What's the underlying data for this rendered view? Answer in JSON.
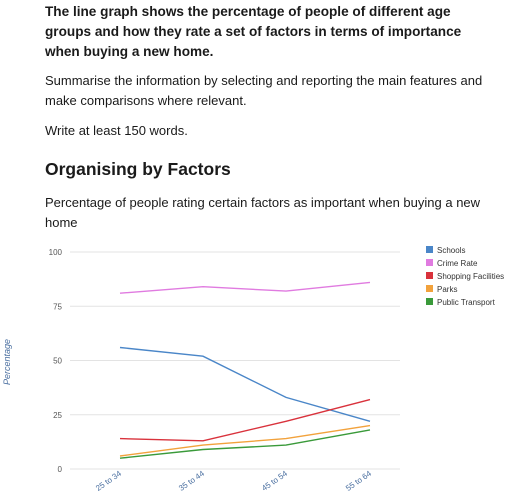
{
  "task": {
    "prompt": "The line graph shows the percentage of people of different age groups and how they rate a set of factors in terms of importance when buying a new home.",
    "instruction": "Summarise the information by selecting and reporting the main features and make comparisons where relevant.",
    "word_count": "Write at least 150 words."
  },
  "section": {
    "heading": "Organising by Factors",
    "caption": "Percentage of people rating certain factors as important when buying a new home"
  },
  "chart_data": {
    "type": "line",
    "title": "",
    "xlabel": "",
    "ylabel": "Percentage",
    "ylim": [
      0,
      100
    ],
    "yticks": [
      "0",
      "25",
      "50",
      "75",
      "100"
    ],
    "categories": [
      "25 to 34",
      "35 to 44",
      "45 to 54",
      "55 to 64"
    ],
    "grid": true,
    "legend": "right",
    "series": [
      {
        "name": "Schools",
        "color": "#4a86c8",
        "values": [
          56,
          52,
          33,
          22
        ]
      },
      {
        "name": "Crime Rate",
        "color": "#e07be0",
        "values": [
          81,
          84,
          82,
          86
        ]
      },
      {
        "name": "Shopping Facilities",
        "color": "#d9323c",
        "values": [
          14,
          13,
          22,
          32
        ]
      },
      {
        "name": "Parks",
        "color": "#f2a23c",
        "values": [
          6,
          11,
          14,
          20
        ]
      },
      {
        "name": "Public Transport",
        "color": "#3a9a3a",
        "values": [
          5,
          9,
          11,
          18
        ]
      }
    ]
  }
}
